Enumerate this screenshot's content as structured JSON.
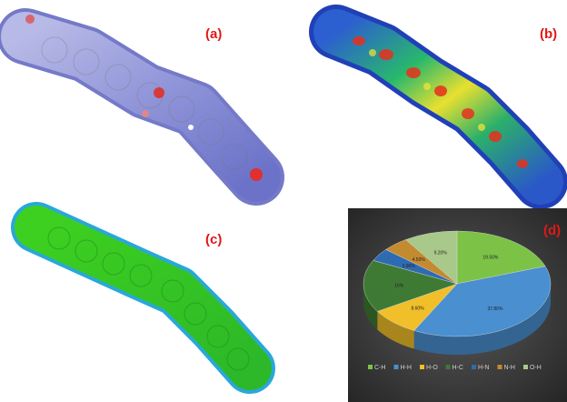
{
  "panels": [
    {
      "label": "(a)"
    },
    {
      "label": "(b)"
    },
    {
      "label": "(c)"
    },
    {
      "label": "(d)"
    }
  ],
  "chart_data": {
    "type": "pie",
    "categories": [
      "C-H",
      "H-H",
      "H-O",
      "H-C",
      "H-N",
      "N-H",
      "O-H"
    ],
    "values": [
      19.5,
      37.8,
      8.6,
      16,
      3.9,
      4.5,
      9.2
    ],
    "value_labels": [
      "19.50%",
      "37.80%",
      "8.60%",
      "16%",
      "3.90%",
      "4.50%",
      "9.20%"
    ],
    "colors": [
      "#7cc247",
      "#4a8fd0",
      "#f1bf2a",
      "#3f7a34",
      "#2e6bb3",
      "#c48a2f",
      "#a8c98a"
    ]
  }
}
